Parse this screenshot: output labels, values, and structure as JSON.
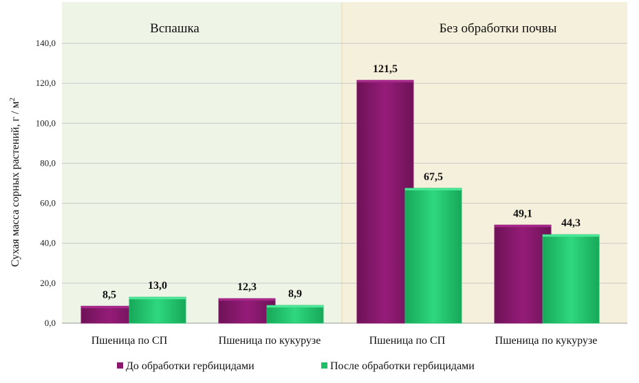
{
  "chart_data": {
    "type": "bar",
    "title": "",
    "ylabel": "Сухая масса сорных растений, г / м",
    "ylabel_sup": "2",
    "ylim": [
      0,
      140
    ],
    "yticks": [
      "0,0",
      "20,0",
      "40,0",
      "60,0",
      "80,0",
      "100,0",
      "120,0",
      "140,0"
    ],
    "grid": true,
    "legend_position": "bottom",
    "panels": [
      "Вспашка",
      "Без обработки почвы"
    ],
    "categories": [
      "Пшеница по СП",
      "Пшеница по кукурузе",
      "Пшеница по СП",
      "Пшеница по кукурузе"
    ],
    "series": [
      {
        "name": "До обработки гербицидами",
        "values": [
          8.5,
          12.3,
          121.5,
          49.1
        ],
        "labels": [
          "8,5",
          "12,3",
          "121,5",
          "49,1"
        ],
        "color": "#8b1a6f"
      },
      {
        "name": "После обработки гербицидами",
        "values": [
          13.0,
          8.9,
          67.5,
          44.3
        ],
        "labels": [
          "13,0",
          "8,9",
          "67,5",
          "44,3"
        ],
        "color": "#1fbf6a"
      }
    ],
    "panel_colors": [
      "#eef4e6",
      "#f5f0dc"
    ]
  }
}
